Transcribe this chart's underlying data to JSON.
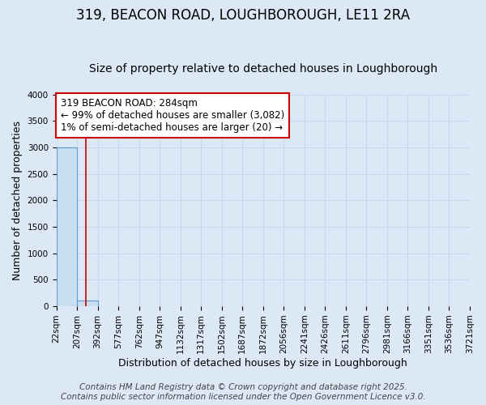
{
  "title": "319, BEACON ROAD, LOUGHBOROUGH, LE11 2RA",
  "subtitle": "Size of property relative to detached houses in Loughborough",
  "xlabel": "Distribution of detached houses by size in Loughborough",
  "ylabel": "Number of detached properties",
  "bin_edges": [
    22,
    207,
    392,
    577,
    762,
    947,
    1132,
    1317,
    1502,
    1687,
    1872,
    2056,
    2241,
    2426,
    2611,
    2796,
    2981,
    3166,
    3351,
    3536,
    3721
  ],
  "bar_heights": [
    3000,
    100,
    0,
    0,
    0,
    0,
    0,
    0,
    0,
    0,
    0,
    0,
    0,
    0,
    0,
    0,
    0,
    0,
    0,
    0
  ],
  "bar_color": "#c9dff0",
  "bar_edge_color": "#5b9bd5",
  "property_size": 284,
  "property_line_color": "#cc0000",
  "ylim": [
    0,
    4000
  ],
  "yticks": [
    0,
    500,
    1000,
    1500,
    2000,
    2500,
    3000,
    3500,
    4000
  ],
  "annotation_text": "319 BEACON ROAD: 284sqm\n← 99% of detached houses are smaller (3,082)\n1% of semi-detached houses are larger (20) →",
  "annotation_box_color": "#ffffff",
  "annotation_border_color": "#cc0000",
  "grid_color": "#c8d8ea",
  "background_color": "#dce8f5",
  "footer_line1": "Contains HM Land Registry data © Crown copyright and database right 2025.",
  "footer_line2": "Contains public sector information licensed under the Open Government Licence v3.0.",
  "title_fontsize": 12,
  "subtitle_fontsize": 10,
  "annotation_fontsize": 8.5,
  "footer_fontsize": 7.5,
  "ylabel_fontsize": 9,
  "xlabel_fontsize": 9,
  "tick_fontsize": 7.5
}
